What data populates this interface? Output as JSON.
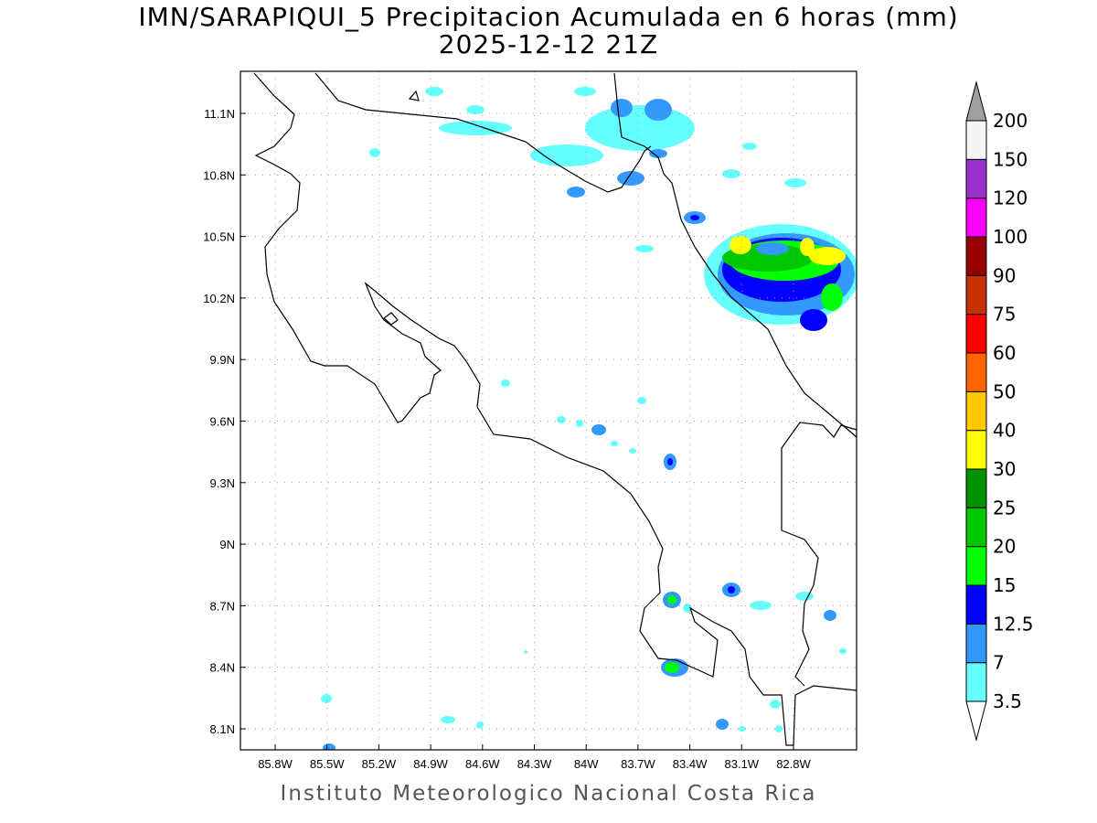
{
  "title": {
    "line1": "IMN/SARAPIQUI_5 Precipitacion Acumulada en 6 horas (mm)",
    "line2": "2025-12-12 21Z"
  },
  "footer": "Instituto Meteorologico Nacional Costa Rica",
  "axes": {
    "x_ticks": [
      "85.8W",
      "85.5W",
      "85.2W",
      "84.9W",
      "84.6W",
      "84.3W",
      "84W",
      "83.7W",
      "83.4W",
      "83.1W",
      "82.8W"
    ],
    "y_ticks": [
      "11.1N",
      "10.8N",
      "10.5N",
      "10.2N",
      "9.9N",
      "9.6N",
      "9.3N",
      "9N",
      "8.7N",
      "8.4N",
      "8.1N"
    ]
  },
  "colorbar": {
    "labels": [
      "3.5",
      "7",
      "12.5",
      "15",
      "20",
      "25",
      "30",
      "40",
      "50",
      "60",
      "75",
      "90",
      "100",
      "120",
      "150",
      "200"
    ],
    "colors": [
      "#66ffff",
      "#3399ff",
      "#0000ff",
      "#00ff00",
      "#00c800",
      "#009100",
      "#ffff00",
      "#ffc800",
      "#ff6400",
      "#ff0000",
      "#c83200",
      "#960000",
      "#ff00ff",
      "#9932cc",
      "#f5f5f5"
    ],
    "over_color": "#a0a0a0",
    "under_color": "#ffffff"
  }
}
